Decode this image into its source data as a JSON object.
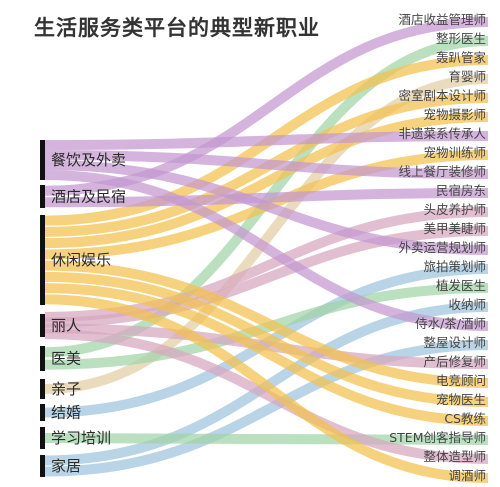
{
  "title": "生活服务类平台的典型新职业",
  "colors": {
    "gold": "#f2c14e",
    "purple": "#c497d0",
    "green": "#9fd4a8",
    "blue": "#9ec3dc",
    "pink": "#d6a6bf",
    "tan": "#e3cda4",
    "bar": "#111111",
    "background": "#ffffff"
  },
  "sources": [
    {
      "name": "餐饮及外卖"
    },
    {
      "name": "酒店及民宿"
    },
    {
      "name": "休闲娱乐"
    },
    {
      "name": "丽人"
    },
    {
      "name": "医美"
    },
    {
      "name": "亲子"
    },
    {
      "name": "结婚"
    },
    {
      "name": "学习培训"
    },
    {
      "name": "家居"
    }
  ],
  "targets": [
    {
      "name": "酒店收益管理师"
    },
    {
      "name": "整形医生"
    },
    {
      "name": "轰趴管家"
    },
    {
      "name": "育婴师"
    },
    {
      "name": "密室剧本设计师"
    },
    {
      "name": "宠物摄影师"
    },
    {
      "name": "非遗菜系传承人"
    },
    {
      "name": "宠物训练师"
    },
    {
      "name": "线上餐厅装修师"
    },
    {
      "name": "民宿房东"
    },
    {
      "name": "头皮养护师"
    },
    {
      "name": "美甲美睫师"
    },
    {
      "name": "外卖运营规划师"
    },
    {
      "name": "旅拍策划师"
    },
    {
      "name": "植发医生"
    },
    {
      "name": "收纳师"
    },
    {
      "name": "侍水/茶/酒师"
    },
    {
      "name": "整屋设计师"
    },
    {
      "name": "产后修复师"
    },
    {
      "name": "电竞顾问"
    },
    {
      "name": "宠物医生"
    },
    {
      "name": "CS教练"
    },
    {
      "name": "STEM创客指导师"
    },
    {
      "name": "整体造型师"
    },
    {
      "name": "调酒师"
    }
  ],
  "links": [
    {
      "source": "酒店及民宿",
      "target": "酒店收益管理师",
      "color": "purple"
    },
    {
      "source": "医美",
      "target": "整形医生",
      "color": "green"
    },
    {
      "source": "休闲娱乐",
      "target": "轰趴管家",
      "color": "gold"
    },
    {
      "source": "亲子",
      "target": "育婴师",
      "color": "tan"
    },
    {
      "source": "休闲娱乐",
      "target": "密室剧本设计师",
      "color": "gold"
    },
    {
      "source": "休闲娱乐",
      "target": "宠物摄影师",
      "color": "gold"
    },
    {
      "source": "餐饮及外卖",
      "target": "非遗菜系传承人",
      "color": "purple"
    },
    {
      "source": "休闲娱乐",
      "target": "宠物训练师",
      "color": "gold"
    },
    {
      "source": "餐饮及外卖",
      "target": "线上餐厅装修师",
      "color": "purple"
    },
    {
      "source": "酒店及民宿",
      "target": "民宿房东",
      "color": "purple"
    },
    {
      "source": "丽人",
      "target": "头皮养护师",
      "color": "pink"
    },
    {
      "source": "丽人",
      "target": "美甲美睫师",
      "color": "pink"
    },
    {
      "source": "餐饮及外卖",
      "target": "外卖运营规划师",
      "color": "purple"
    },
    {
      "source": "结婚",
      "target": "旅拍策划师",
      "color": "blue"
    },
    {
      "source": "医美",
      "target": "植发医生",
      "color": "green"
    },
    {
      "source": "家居",
      "target": "收纳师",
      "color": "blue"
    },
    {
      "source": "餐饮及外卖",
      "target": "侍水/茶/酒师",
      "color": "purple"
    },
    {
      "source": "家居",
      "target": "整屋设计师",
      "color": "blue"
    },
    {
      "source": "丽人",
      "target": "产后修复师",
      "color": "pink"
    },
    {
      "source": "休闲娱乐",
      "target": "电竞顾问",
      "color": "gold"
    },
    {
      "source": "休闲娱乐",
      "target": "宠物医生",
      "color": "gold"
    },
    {
      "source": "休闲娱乐",
      "target": "CS教练",
      "color": "gold"
    },
    {
      "source": "学习培训",
      "target": "STEM创客指导师",
      "color": "green"
    },
    {
      "source": "丽人",
      "target": "整体造型师",
      "color": "pink"
    },
    {
      "source": "休闲娱乐",
      "target": "调酒师",
      "color": "gold"
    }
  ]
}
